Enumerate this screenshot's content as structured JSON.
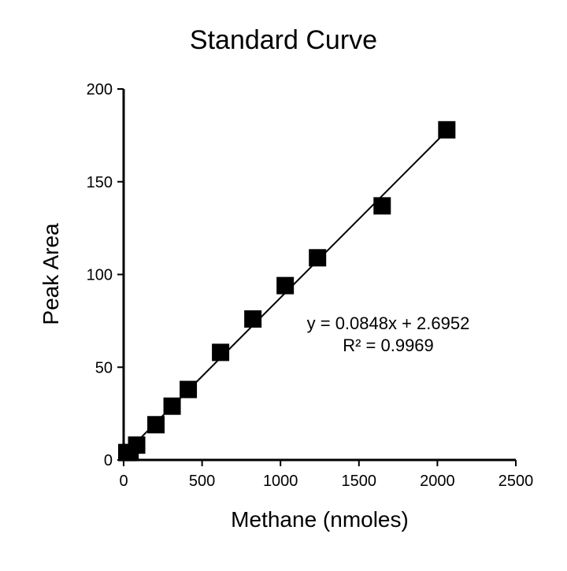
{
  "chart_data": {
    "type": "scatter",
    "title": "Standard Curve",
    "xlabel": "Methane (nmoles)",
    "ylabel": "Peak Area",
    "xlim": [
      0,
      2500
    ],
    "ylim": [
      0,
      200
    ],
    "xticks": [
      0,
      500,
      1000,
      1500,
      2000,
      2500
    ],
    "yticks": [
      0,
      50,
      100,
      150,
      200
    ],
    "grid": false,
    "legend": "none",
    "marker": "square",
    "marker_color": "#000000",
    "series": [
      {
        "points": [
          {
            "x": 20,
            "y": 4
          },
          {
            "x": 41,
            "y": 4
          },
          {
            "x": 83,
            "y": 8
          },
          {
            "x": 206,
            "y": 19
          },
          {
            "x": 309,
            "y": 29
          },
          {
            "x": 412,
            "y": 38
          },
          {
            "x": 618,
            "y": 58
          },
          {
            "x": 824,
            "y": 76
          },
          {
            "x": 1030,
            "y": 94
          },
          {
            "x": 1236,
            "y": 109
          },
          {
            "x": 1648,
            "y": 137
          },
          {
            "x": 2060,
            "y": 178
          }
        ]
      }
    ],
    "trendline": {
      "type": "linear",
      "slope": 0.0848,
      "intercept": 2.6952,
      "x_range": [
        0,
        2060
      ],
      "color": "#000000",
      "equation_label": "y = 0.0848x + 2.6952",
      "r2_label": "R² = 0.9969"
    }
  }
}
